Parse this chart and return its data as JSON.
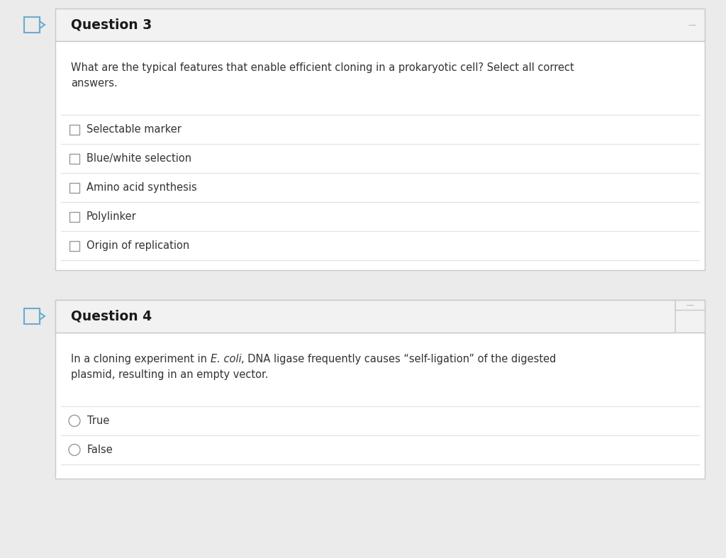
{
  "background_color": "#ebebeb",
  "card_bg": "#ffffff",
  "header_bg": "#f2f2f2",
  "border_color": "#c8c8c8",
  "divider_color": "#e2e2e2",
  "text_color": "#222222",
  "question_title_color": "#1a1a1a",
  "body_text_color": "#333333",
  "checkbox_color": "#999999",
  "radio_color": "#999999",
  "arrow_color": "#6aaccf",
  "q3_title": "Question 3",
  "q3_body_line1": "What are the typical features that enable efficient cloning in a prokaryotic cell? Select all correct",
  "q3_body_line2": "answers.",
  "q3_options": [
    "Selectable marker",
    "Blue/white selection",
    "Amino acid synthesis",
    "Polylinker",
    "Origin of replication"
  ],
  "q4_title": "Question 4",
  "q4_body_normal": "In a cloning experiment in ",
  "q4_body_italic": "E. coli",
  "q4_body_rest_line1": ", DNA ligase frequently causes “self-ligation” of the digested",
  "q4_body_line2": "plasmid, resulting in an empty vector.",
  "q4_options": [
    "True",
    "False"
  ],
  "fig_width": 10.24,
  "fig_height": 7.87,
  "dpi": 100
}
